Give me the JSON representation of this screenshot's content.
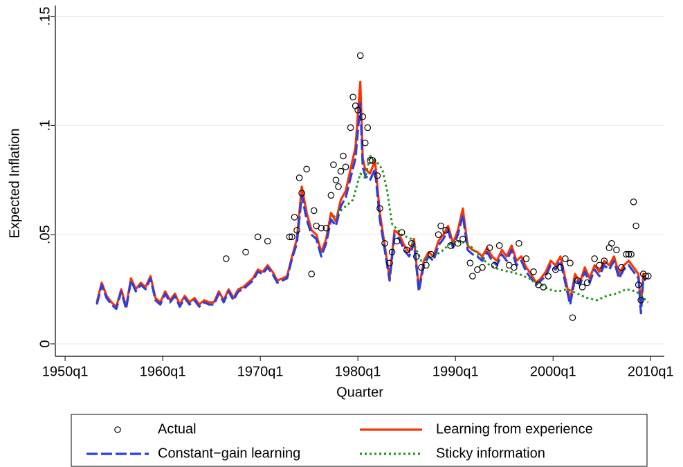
{
  "chart_data": {
    "type": "line",
    "xlabel": "Quarter",
    "ylabel": "Expected Inflation",
    "xlim": [
      1949,
      2011.4
    ],
    "ylim": [
      -0.0057,
      0.153
    ],
    "xticks": [
      {
        "value": 1950,
        "label": "1950q1"
      },
      {
        "value": 1960,
        "label": "1960q1"
      },
      {
        "value": 1970,
        "label": "1970q1"
      },
      {
        "value": 1980,
        "label": "1980q1"
      },
      {
        "value": 1990,
        "label": "1990q1"
      },
      {
        "value": 2000,
        "label": "2000q1"
      },
      {
        "value": 2010,
        "label": "2010q1"
      }
    ],
    "yticks": [
      0,
      {
        "value": 0.05,
        "label": ".05"
      },
      {
        "value": 0.1,
        "label": ".1"
      },
      {
        "value": 0.15,
        "label": ".15"
      }
    ],
    "grid": true,
    "legend": "bottom",
    "x": [
      1953.25,
      1953.75,
      1954.25,
      1954.75,
      1955.25,
      1955.75,
      1956.25,
      1956.75,
      1957.25,
      1957.75,
      1958.25,
      1958.75,
      1959.25,
      1959.75,
      1960.25,
      1960.75,
      1961.25,
      1961.75,
      1962.25,
      1962.75,
      1963.25,
      1963.75,
      1964.25,
      1964.75,
      1965.25,
      1965.75,
      1966.25,
      1966.75,
      1967.25,
      1967.75,
      1968.25,
      1968.75,
      1969.25,
      1969.75,
      1970.25,
      1970.75,
      1971.25,
      1971.75,
      1972.25,
      1972.75,
      1973.25,
      1973.75,
      1974.25,
      1974.75,
      1975.25,
      1975.75,
      1976.25,
      1976.75,
      1977.25,
      1977.75,
      1978.25,
      1978.75,
      1979.25,
      1979.75,
      1980.25,
      1980.5,
      1980.75,
      1981.25,
      1981.75,
      1982.25,
      1982.75,
      1983.25,
      1983.75,
      1984.25,
      1984.75,
      1985.25,
      1985.75,
      1986.25,
      1986.75,
      1987.25,
      1987.75,
      1988.25,
      1988.75,
      1989.25,
      1989.75,
      1990.25,
      1990.75,
      1991.25,
      1991.75,
      1992.25,
      1992.75,
      1993.25,
      1993.75,
      1994.25,
      1994.75,
      1995.25,
      1995.75,
      1996.25,
      1996.75,
      1997.25,
      1997.75,
      1998.25,
      1998.75,
      1999.25,
      1999.75,
      2000.25,
      2000.75,
      2001.25,
      2001.75,
      2002.25,
      2002.75,
      2003.25,
      2003.75,
      2004.25,
      2004.75,
      2005.25,
      2005.75,
      2006.25,
      2006.75,
      2007.25,
      2007.75,
      2008.25,
      2008.75,
      2009.0,
      2009.25,
      2009.5
    ],
    "series": [
      {
        "name": "Actual",
        "color": "#000000",
        "marker": "circle",
        "x": [
          1966.5,
          1968.5,
          1969.75,
          1970.75,
          1973.0,
          1973.25,
          1973.5,
          1973.75,
          1974.0,
          1974.25,
          1974.75,
          1975.25,
          1975.5,
          1975.75,
          1976.25,
          1976.75,
          1977.25,
          1977.5,
          1977.75,
          1978.0,
          1978.25,
          1978.5,
          1978.75,
          1979.25,
          1979.5,
          1979.75,
          1980.0,
          1980.25,
          1980.5,
          1980.75,
          1981.0,
          1981.25,
          1981.5,
          1982.0,
          1982.25,
          1982.75,
          1983.25,
          1983.5,
          1984.0,
          1984.5,
          1985.0,
          1985.5,
          1986.0,
          1986.5,
          1987.0,
          1987.5,
          1988.25,
          1988.5,
          1989.0,
          1989.5,
          1990.25,
          1990.75,
          1991.5,
          1991.75,
          1992.25,
          1992.75,
          1993.5,
          1994.0,
          1994.5,
          1995.5,
          1996.0,
          1996.5,
          1997.25,
          1998.0,
          1998.5,
          1999.0,
          1999.5,
          2000.25,
          2000.75,
          2001.25,
          2001.75,
          2002.0,
          2002.5,
          2003.0,
          2003.5,
          2004.25,
          2004.75,
          2005.25,
          2005.75,
          2006.0,
          2006.5,
          2007.0,
          2007.5,
          2007.75,
          2008.0,
          2008.25,
          2008.5,
          2008.75,
          2009.0,
          2009.25,
          2009.5,
          2009.75
        ],
        "values": [
          0.039,
          0.042,
          0.049,
          0.047,
          0.049,
          0.049,
          0.058,
          0.052,
          0.076,
          0.069,
          0.08,
          0.032,
          0.061,
          0.054,
          0.053,
          0.053,
          0.068,
          0.082,
          0.075,
          0.072,
          0.079,
          0.086,
          0.081,
          0.099,
          0.113,
          0.109,
          0.107,
          0.132,
          0.104,
          0.092,
          0.099,
          0.084,
          0.084,
          0.077,
          0.062,
          0.046,
          0.037,
          0.042,
          0.047,
          0.051,
          0.043,
          0.046,
          0.04,
          0.035,
          0.036,
          0.041,
          0.05,
          0.054,
          0.052,
          0.045,
          0.046,
          0.048,
          0.037,
          0.031,
          0.034,
          0.035,
          0.044,
          0.036,
          0.045,
          0.036,
          0.035,
          0.046,
          0.039,
          0.033,
          0.027,
          0.026,
          0.031,
          0.034,
          0.035,
          0.039,
          0.037,
          0.012,
          0.029,
          0.026,
          0.028,
          0.039,
          0.036,
          0.038,
          0.044,
          0.046,
          0.043,
          0.035,
          0.041,
          0.041,
          0.041,
          0.065,
          0.054,
          0.027,
          0.02,
          0.032,
          0.031,
          0.031
        ]
      },
      {
        "name": "Learning from experience",
        "color": "#ff3300",
        "dash": "solid",
        "values": [
          0.019,
          0.028,
          0.022,
          0.019,
          0.017,
          0.025,
          0.017,
          0.03,
          0.025,
          0.028,
          0.026,
          0.031,
          0.021,
          0.019,
          0.024,
          0.02,
          0.023,
          0.018,
          0.022,
          0.019,
          0.021,
          0.018,
          0.02,
          0.019,
          0.019,
          0.024,
          0.02,
          0.025,
          0.021,
          0.025,
          0.026,
          0.028,
          0.03,
          0.034,
          0.033,
          0.036,
          0.033,
          0.029,
          0.03,
          0.031,
          0.04,
          0.048,
          0.072,
          0.06,
          0.052,
          0.05,
          0.042,
          0.048,
          0.06,
          0.056,
          0.066,
          0.07,
          0.08,
          0.09,
          0.12,
          0.085,
          0.08,
          0.078,
          0.084,
          0.06,
          0.045,
          0.03,
          0.052,
          0.05,
          0.045,
          0.042,
          0.048,
          0.025,
          0.038,
          0.042,
          0.04,
          0.047,
          0.05,
          0.054,
          0.046,
          0.052,
          0.062,
          0.045,
          0.043,
          0.042,
          0.04,
          0.044,
          0.04,
          0.038,
          0.043,
          0.04,
          0.045,
          0.038,
          0.04,
          0.035,
          0.032,
          0.028,
          0.03,
          0.033,
          0.038,
          0.036,
          0.04,
          0.03,
          0.02,
          0.032,
          0.028,
          0.035,
          0.03,
          0.036,
          0.033,
          0.038,
          0.036,
          0.04,
          0.032,
          0.036,
          0.038,
          0.035,
          0.032,
          0.017,
          0.032,
          0.03
        ]
      },
      {
        "name": "Constant−gain learning",
        "color": "#2a3fe0",
        "dash": "longdash",
        "values": [
          0.018,
          0.027,
          0.021,
          0.018,
          0.016,
          0.024,
          0.016,
          0.029,
          0.024,
          0.027,
          0.025,
          0.03,
          0.02,
          0.018,
          0.023,
          0.019,
          0.022,
          0.017,
          0.021,
          0.018,
          0.02,
          0.017,
          0.019,
          0.018,
          0.018,
          0.023,
          0.019,
          0.024,
          0.02,
          0.024,
          0.025,
          0.027,
          0.029,
          0.033,
          0.032,
          0.035,
          0.032,
          0.028,
          0.029,
          0.03,
          0.039,
          0.046,
          0.068,
          0.057,
          0.05,
          0.048,
          0.04,
          0.046,
          0.057,
          0.054,
          0.063,
          0.067,
          0.076,
          0.085,
          0.11,
          0.081,
          0.077,
          0.075,
          0.08,
          0.057,
          0.043,
          0.029,
          0.05,
          0.048,
          0.043,
          0.04,
          0.046,
          0.024,
          0.036,
          0.04,
          0.038,
          0.045,
          0.048,
          0.052,
          0.044,
          0.05,
          0.059,
          0.043,
          0.041,
          0.04,
          0.038,
          0.042,
          0.038,
          0.036,
          0.041,
          0.038,
          0.043,
          0.036,
          0.038,
          0.033,
          0.03,
          0.027,
          0.029,
          0.031,
          0.036,
          0.034,
          0.038,
          0.028,
          0.018,
          0.03,
          0.027,
          0.033,
          0.028,
          0.034,
          0.031,
          0.036,
          0.034,
          0.038,
          0.03,
          0.034,
          0.036,
          0.033,
          0.03,
          0.014,
          0.03,
          0.029
        ]
      },
      {
        "name": "Sticky information",
        "color": "#1a9a1a",
        "dash": "dot",
        "x": [
          1977.5,
          1978.5,
          1979.5,
          1980.25,
          1980.75,
          1981.25,
          1982.0,
          1982.5,
          1983.0,
          1983.5,
          1984.5,
          1985.5,
          1986.5,
          1987.5,
          1988.5,
          1989.5,
          1990.5,
          1991.5,
          1992.5,
          1993.5,
          1994.5,
          1995.5,
          1996.5,
          1997.5,
          1998.5,
          1999.5,
          2000.5,
          2001.5,
          2002.5,
          2003.5,
          2004.5,
          2005.5,
          2006.5,
          2007.5,
          2008.5,
          2009.25,
          2009.75
        ],
        "values": [
          0.058,
          0.062,
          0.066,
          0.078,
          0.076,
          0.086,
          0.083,
          0.08,
          0.07,
          0.055,
          0.05,
          0.048,
          0.038,
          0.04,
          0.042,
          0.046,
          0.047,
          0.045,
          0.04,
          0.036,
          0.034,
          0.033,
          0.032,
          0.03,
          0.028,
          0.025,
          0.024,
          0.025,
          0.023,
          0.021,
          0.02,
          0.022,
          0.023,
          0.025,
          0.024,
          0.021,
          0.019
        ]
      }
    ]
  }
}
